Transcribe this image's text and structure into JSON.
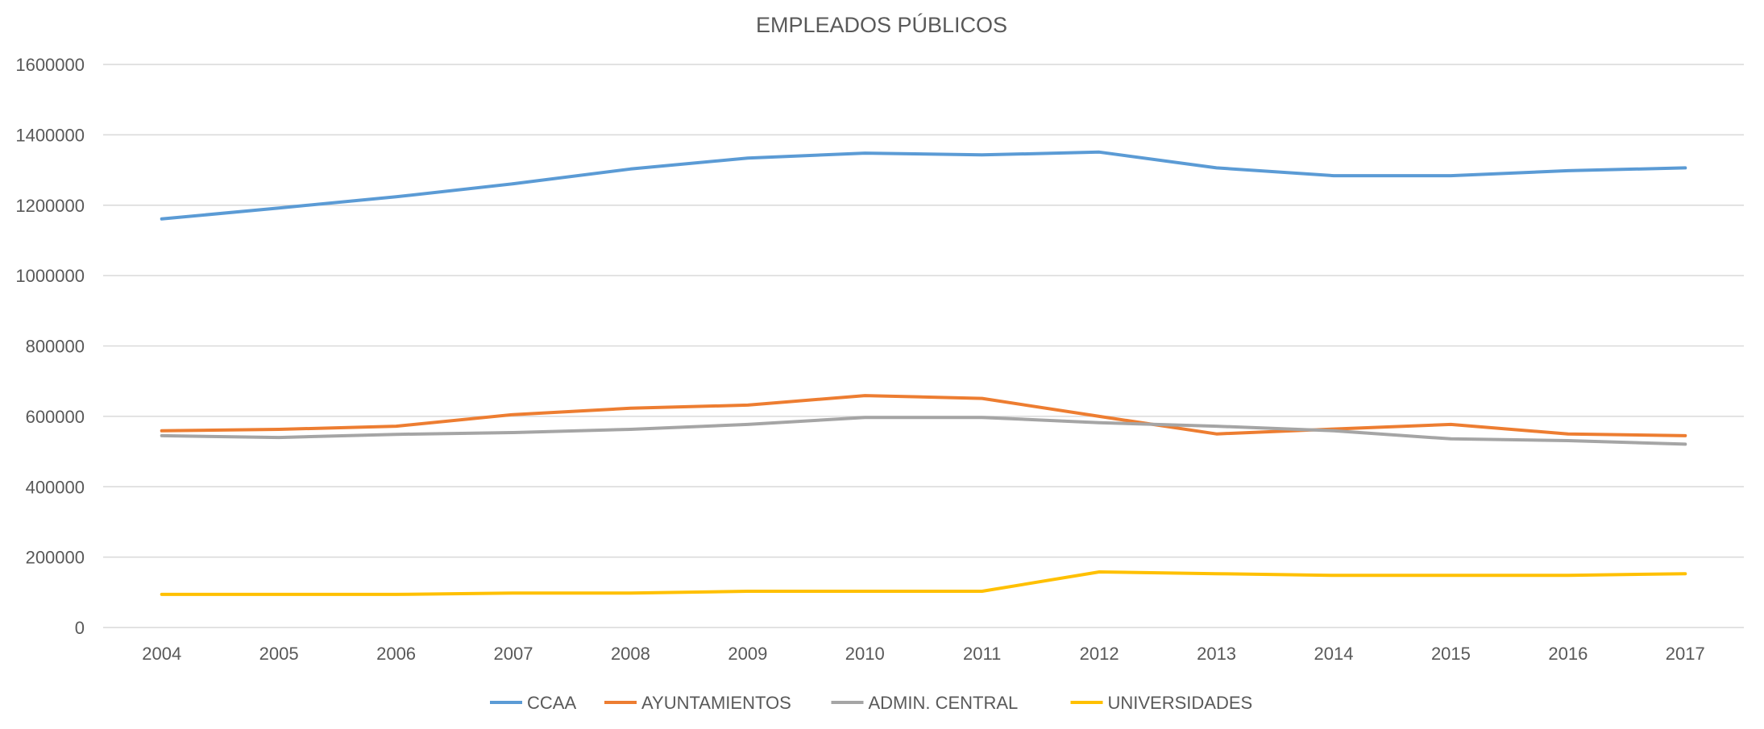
{
  "chart_data": {
    "type": "line",
    "title": "EMPLEADOS PÚBLICOS",
    "xlabel": "",
    "ylabel": "",
    "ylim": [
      0,
      1600000
    ],
    "yticks": [
      0,
      200000,
      400000,
      600000,
      800000,
      1000000,
      1200000,
      1400000,
      1600000
    ],
    "grid": true,
    "legend_position": "bottom",
    "categories": [
      "2004",
      "2005",
      "2006",
      "2007",
      "2008",
      "2009",
      "2010",
      "2011",
      "2012",
      "2013",
      "2014",
      "2015",
      "2016",
      "2017"
    ],
    "series": [
      {
        "name": "CCAA",
        "color": "#5B9BD5",
        "values": [
          1161000,
          1192000,
          1224000,
          1261000,
          1303000,
          1334000,
          1348000,
          1343000,
          1351000,
          1306000,
          1284000,
          1284000,
          1298000,
          1306000
        ]
      },
      {
        "name": "AYUNTAMIENTOS",
        "color": "#ED7D31",
        "values": [
          559000,
          563000,
          572000,
          605000,
          623000,
          632000,
          659000,
          651000,
          600000,
          550000,
          564000,
          577000,
          550000,
          545000
        ]
      },
      {
        "name": "ADMIN. CENTRAL",
        "color": "#A5A5A5",
        "values": [
          545000,
          540000,
          549000,
          554000,
          563000,
          577000,
          597000,
          597000,
          582000,
          572000,
          559000,
          536000,
          531000,
          521000
        ]
      },
      {
        "name": "UNIVERSIDADES",
        "color": "#FFC000",
        "values": [
          94000,
          94000,
          94000,
          98000,
          98000,
          103000,
          103000,
          103000,
          158000,
          153000,
          148000,
          148000,
          148000,
          153000
        ]
      }
    ]
  }
}
